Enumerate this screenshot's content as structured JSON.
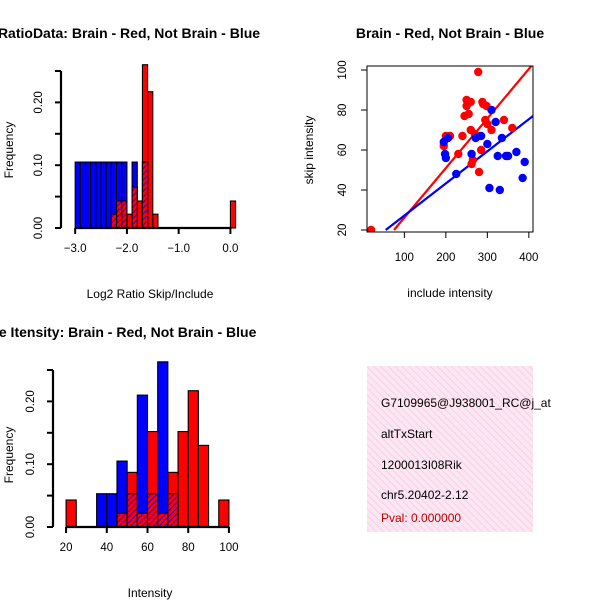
{
  "colors": {
    "red": "#ff0000",
    "blue": "#0000ff",
    "purple": "#a020a0",
    "pink": "#f8e0ee",
    "pink_line": "#f0c0dc",
    "pval": "#c00000"
  },
  "chart_data": [
    {
      "id": "ratio-hist",
      "type": "bar",
      "title": "RatioData: Brain - Red, Not Brain - Blue",
      "xlabel": "Log2 Ratio Skip/Include",
      "ylabel": "Frequency",
      "xlim": [
        -3.1,
        0.05
      ],
      "ylim": [
        0,
        0.25
      ],
      "xticks": [
        -3.0,
        -2.0,
        -1.0,
        0.0
      ],
      "xtick_labels": [
        "−3.0",
        "−2.0",
        "−1.0",
        "0.0"
      ],
      "yticks": [
        0.0,
        0.1,
        0.2
      ],
      "ytick_labels": [
        "0.00",
        "0.10",
        "0.20"
      ],
      "bin_width": 0.1,
      "series": [
        {
          "name": "Brain",
          "color": "red",
          "bins": [
            [
              -2.3,
              0.022
            ],
            [
              -2.2,
              0.043
            ],
            [
              -2.1,
              0.043
            ],
            [
              -2.0,
              0.022
            ],
            [
              -1.9,
              0.065
            ],
            [
              -1.8,
              0.043
            ],
            [
              -1.7,
              0.26
            ],
            [
              -1.6,
              0.217
            ],
            [
              -1.5,
              0.022
            ],
            [
              0.0,
              0.043
            ]
          ]
        },
        {
          "name": "Not Brain",
          "color": "blue",
          "bins": [
            [
              -3.0,
              0.105
            ],
            [
              -2.9,
              0.105
            ],
            [
              -2.8,
              0.105
            ],
            [
              -2.7,
              0.105
            ],
            [
              -2.6,
              0.105
            ],
            [
              -2.5,
              0.105
            ],
            [
              -2.4,
              0.105
            ],
            [
              -2.3,
              0.105
            ],
            [
              -2.2,
              0.105
            ],
            [
              -2.1,
              0.105
            ],
            [
              -1.9,
              0.105
            ],
            [
              -1.7,
              0.105
            ]
          ]
        }
      ]
    },
    {
      "id": "scatter",
      "type": "scatter",
      "title": "Brain - Red, Not Brain - Blue",
      "xlabel": "include intensity",
      "ylabel": "skip intensity",
      "xlim": [
        10,
        410
      ],
      "ylim": [
        19,
        102
      ],
      "xticks": [
        100,
        200,
        300,
        400
      ],
      "yticks": [
        20,
        40,
        60,
        80,
        100
      ],
      "series": [
        {
          "name": "Brain",
          "color": "red",
          "points": [
            [
              20,
              20
            ],
            [
              195,
              62
            ],
            [
              200,
              67
            ],
            [
              210,
              67
            ],
            [
              230,
              58
            ],
            [
              240,
              67
            ],
            [
              245,
              77
            ],
            [
              250,
              82
            ],
            [
              250,
              85
            ],
            [
              255,
              78
            ],
            [
              260,
              84
            ],
            [
              260,
              70
            ],
            [
              262,
              53
            ],
            [
              265,
              55
            ],
            [
              270,
              68
            ],
            [
              278,
              99
            ],
            [
              280,
              49
            ],
            [
              285,
              60
            ],
            [
              288,
              84
            ],
            [
              290,
              83
            ],
            [
              295,
              75
            ],
            [
              298,
              82
            ],
            [
              300,
              73
            ],
            [
              310,
              70
            ],
            [
              340,
              75
            ],
            [
              360,
              71
            ]
          ],
          "fit": [
            [
              75,
              20
            ],
            [
              410,
              103
            ]
          ]
        },
        {
          "name": "Not Brain",
          "color": "blue",
          "points": [
            [
              195,
              64
            ],
            [
              198,
              58
            ],
            [
              200,
              56
            ],
            [
              205,
              66
            ],
            [
              225,
              48
            ],
            [
              262,
              58
            ],
            [
              272,
              66
            ],
            [
              285,
              67
            ],
            [
              300,
              63
            ],
            [
              305,
              41
            ],
            [
              310,
              80
            ],
            [
              320,
              74
            ],
            [
              325,
              57
            ],
            [
              330,
              40
            ],
            [
              335,
              66
            ],
            [
              345,
              57
            ],
            [
              350,
              57
            ],
            [
              370,
              59
            ],
            [
              385,
              46
            ],
            [
              390,
              54
            ]
          ],
          "fit": [
            [
              55,
              20
            ],
            [
              410,
              77
            ]
          ]
        }
      ]
    },
    {
      "id": "gene-hist",
      "type": "bar",
      "title": "Gene Itensity: Brain - Red, Not Brain - Blue",
      "xlabel": "Intensity",
      "ylabel": "Frequency",
      "xlim": [
        18,
        102
      ],
      "ylim": [
        0,
        0.25
      ],
      "xticks": [
        20,
        40,
        60,
        80,
        100
      ],
      "xtick_labels": [
        "20",
        "40",
        "60",
        "80",
        "100"
      ],
      "yticks": [
        0.0,
        0.1,
        0.2
      ],
      "ytick_labels": [
        "0.00",
        "0.10",
        "0.20"
      ],
      "bin_width": 5,
      "series": [
        {
          "name": "Brain",
          "color": "red",
          "bins": [
            [
              20,
              0.043
            ],
            [
              45,
              0.022
            ],
            [
              50,
              0.087
            ],
            [
              55,
              0.022
            ],
            [
              60,
              0.152
            ],
            [
              65,
              0.022
            ],
            [
              70,
              0.087
            ],
            [
              75,
              0.152
            ],
            [
              80,
              0.217
            ],
            [
              85,
              0.13
            ],
            [
              95,
              0.043
            ]
          ]
        },
        {
          "name": "Not Brain",
          "color": "blue",
          "bins": [
            [
              35,
              0.053
            ],
            [
              40,
              0.053
            ],
            [
              45,
              0.105
            ],
            [
              50,
              0.053
            ],
            [
              55,
              0.21
            ],
            [
              60,
              0.053
            ],
            [
              65,
              0.263
            ],
            [
              70,
              0.053
            ]
          ]
        }
      ]
    }
  ],
  "info": {
    "line1": "G7109965@J938001_RC@j_at",
    "line2": "altTxStart",
    "line3": "1200013I08Rik",
    "line4": "chr5.20402-2.12",
    "pval": "Pval: 0.000000"
  }
}
